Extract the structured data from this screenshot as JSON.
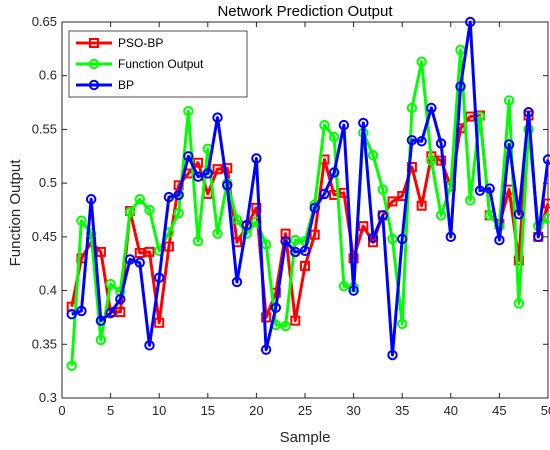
{
  "chart_data": {
    "type": "line",
    "title": "Network Prediction Output",
    "xlabel": "Sample",
    "ylabel": "Function Output",
    "xlim": [
      0,
      50
    ],
    "ylim": [
      0.3,
      0.65
    ],
    "xticks": [
      "0",
      "5",
      "10",
      "15",
      "20",
      "25",
      "30",
      "35",
      "40",
      "45",
      "50"
    ],
    "yticks": [
      "0.3",
      "0.35",
      "0.4",
      "0.45",
      "0.5",
      "0.55",
      "0.6",
      "0.65"
    ],
    "x": [
      1,
      2,
      3,
      4,
      5,
      6,
      7,
      8,
      9,
      10,
      11,
      12,
      13,
      14,
      15,
      16,
      17,
      18,
      19,
      20,
      21,
      22,
      23,
      24,
      25,
      26,
      27,
      28,
      29,
      30,
      31,
      32,
      33,
      34,
      35,
      36,
      37,
      38,
      39,
      40,
      41,
      42,
      43,
      44,
      45,
      46,
      47,
      48,
      49,
      50
    ],
    "grid": false,
    "legend_position": "top-left",
    "series": [
      {
        "name": "PSO-BP",
        "color": "#ff0000",
        "marker": "square",
        "values": [
          0.385,
          0.43,
          0.445,
          0.436,
          0.38,
          0.38,
          0.474,
          0.435,
          0.436,
          0.37,
          0.441,
          0.498,
          0.509,
          0.519,
          0.49,
          0.513,
          0.514,
          0.445,
          0.46,
          0.477,
          0.375,
          0.398,
          0.453,
          0.372,
          0.423,
          0.452,
          0.522,
          0.489,
          0.491,
          0.43,
          0.46,
          0.445,
          0.47,
          0.483,
          0.488,
          0.515,
          0.479,
          0.525,
          0.521,
          0.497,
          0.551,
          0.562,
          0.563,
          0.47,
          0.462,
          0.494,
          0.428,
          0.563,
          0.45,
          0.481
        ]
      },
      {
        "name": "Function Output",
        "color": "#00ff00",
        "marker": "circle",
        "values": [
          0.33,
          0.465,
          0.453,
          0.354,
          0.406,
          0.399,
          0.473,
          0.485,
          0.475,
          0.437,
          0.454,
          0.472,
          0.567,
          0.446,
          0.532,
          0.453,
          0.5,
          0.466,
          0.453,
          0.464,
          0.443,
          0.368,
          0.367,
          0.447,
          0.446,
          0.48,
          0.554,
          0.543,
          0.404,
          0.403,
          0.547,
          0.526,
          0.494,
          0.448,
          0.369,
          0.57,
          0.613,
          0.521,
          0.47,
          0.497,
          0.624,
          0.484,
          0.562,
          0.47,
          0.46,
          0.577,
          0.388,
          0.55,
          0.46,
          0.467
        ]
      },
      {
        "name": "BP",
        "color": "#0000ff",
        "marker": "circle",
        "values": [
          0.378,
          0.381,
          0.485,
          0.372,
          0.379,
          0.392,
          0.429,
          0.426,
          0.349,
          0.412,
          0.487,
          0.489,
          0.525,
          0.506,
          0.509,
          0.561,
          0.498,
          0.408,
          0.461,
          0.523,
          0.345,
          0.384,
          0.446,
          0.436,
          0.437,
          0.477,
          0.49,
          0.51,
          0.554,
          0.4,
          0.556,
          0.449,
          0.47,
          0.34,
          0.448,
          0.54,
          0.539,
          0.57,
          0.537,
          0.45,
          0.59,
          0.65,
          0.493,
          0.495,
          0.447,
          0.536,
          0.471,
          0.566,
          0.45,
          0.522
        ]
      }
    ]
  }
}
